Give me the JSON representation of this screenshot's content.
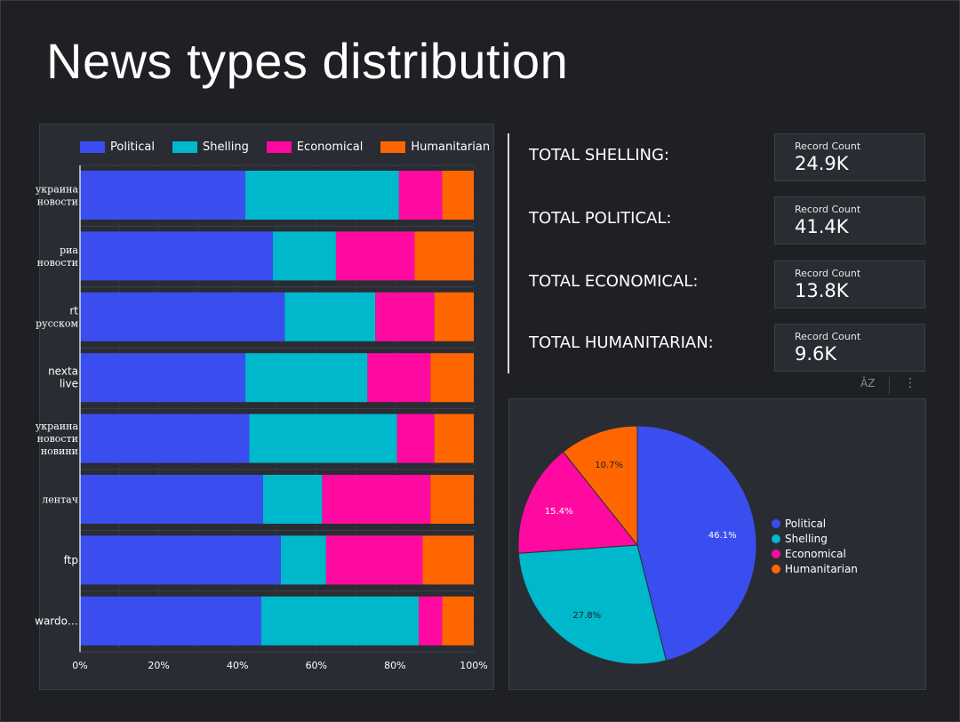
{
  "page": {
    "title": "News types distribution"
  },
  "colors": {
    "political": "#3a4ef0",
    "shelling": "#00b8cc",
    "economical": "#ff0aa0",
    "humanitarian": "#ff6600"
  },
  "chart_data": [
    {
      "type": "bar",
      "orientation": "horizontal-stacked-percent",
      "categories": [
        [
          "украина",
          "новости"
        ],
        [
          "риа",
          "новости"
        ],
        [
          "rt",
          "русском"
        ],
        [
          "nexta",
          "live"
        ],
        [
          "украина",
          "новости",
          "новини"
        ],
        [
          "лентач"
        ],
        [
          "ftp"
        ],
        [
          "wardo…"
        ]
      ],
      "series": [
        {
          "name": "Political",
          "values": [
            42,
            49,
            52,
            42,
            43,
            46.5,
            51,
            46
          ]
        },
        {
          "name": "Shelling",
          "values": [
            39,
            16,
            23,
            31,
            37.5,
            15,
            11.5,
            40
          ]
        },
        {
          "name": "Economical",
          "values": [
            11,
            20,
            15,
            16,
            9.5,
            27.5,
            24.5,
            6
          ]
        },
        {
          "name": "Humanitarian",
          "values": [
            8,
            15,
            10,
            11,
            10,
            11,
            13,
            8
          ]
        }
      ],
      "xticks": [
        "0%",
        "20%",
        "40%",
        "60%",
        "80%",
        "100%"
      ],
      "xlim": [
        0,
        100
      ],
      "legend": "top",
      "grid": true
    },
    {
      "type": "pie",
      "series": [
        {
          "name": "Political",
          "value": 46.1,
          "label": "46.1%"
        },
        {
          "name": "Shelling",
          "value": 27.8,
          "label": "27.8%"
        },
        {
          "name": "Economical",
          "value": 15.4,
          "label": "15.4%"
        },
        {
          "name": "Humanitarian",
          "value": 10.7,
          "label": "10.7%"
        }
      ],
      "legend": "right"
    }
  ],
  "totals": [
    {
      "label": "TOTAL SHELLING:",
      "caption": "Record Count",
      "value": "24.9K"
    },
    {
      "label": "TOTAL POLITICAL:",
      "caption": "Record Count",
      "value": "41.4K"
    },
    {
      "label": "TOTAL ECONOMICAL:",
      "caption": "Record Count",
      "value": "13.8K"
    },
    {
      "label": "TOTAL HUMANITARIAN:",
      "caption": "Record Count",
      "value": "9.6K"
    }
  ],
  "toolbar": {
    "sort_icon": "ÂZ",
    "more_icon": "⋮"
  }
}
